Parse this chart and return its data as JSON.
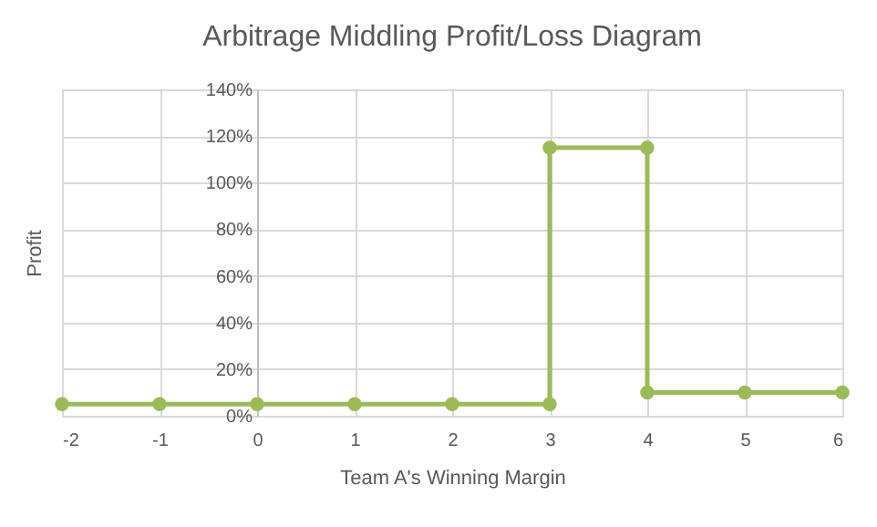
{
  "chart_data": {
    "type": "line",
    "title": "Arbitrage Middling Profit/Loss Diagram",
    "xlabel": "Team A's Winning Margin",
    "ylabel": "Profit",
    "series": [
      {
        "color": "#9bbb59",
        "x": [
          -2,
          -1,
          0,
          1,
          2,
          3,
          3,
          4,
          4,
          5,
          6
        ],
        "values": [
          5,
          5,
          5,
          5,
          5,
          5,
          115,
          115,
          10,
          10,
          10
        ]
      }
    ],
    "xlim": [
      -2,
      6
    ],
    "xticks": [
      -2,
      -1,
      0,
      1,
      2,
      3,
      4,
      5,
      6
    ],
    "ylim": [
      0,
      140
    ],
    "yticks": [
      {
        "value": 0,
        "label": "0%"
      },
      {
        "value": 20,
        "label": "20%"
      },
      {
        "value": 40,
        "label": "40%"
      },
      {
        "value": 60,
        "label": "60%"
      },
      {
        "value": 80,
        "label": "80%"
      },
      {
        "value": 100,
        "label": "100%"
      },
      {
        "value": 120,
        "label": "120%"
      },
      {
        "value": 140,
        "label": "140%"
      }
    ],
    "grid": true,
    "marker": "circle",
    "line_style": "solid"
  }
}
